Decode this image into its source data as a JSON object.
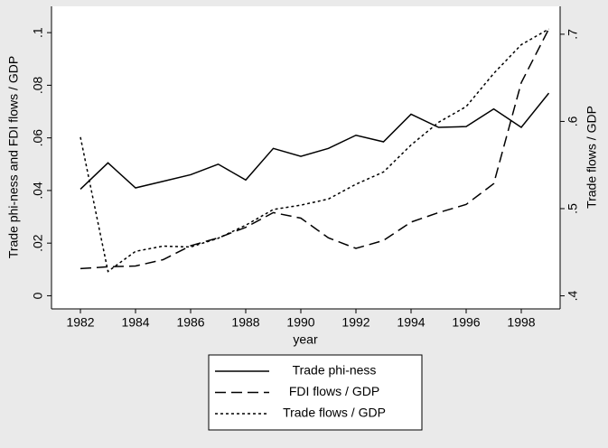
{
  "chart_data": {
    "type": "line",
    "x": [
      1982,
      1983,
      1984,
      1985,
      1986,
      1987,
      1988,
      1989,
      1990,
      1991,
      1992,
      1993,
      1994,
      1995,
      1996,
      1997,
      1998,
      1999
    ],
    "xlabel": "year",
    "ylabel": "Trade phi-ness and FDI flows / GDP",
    "y2label": "Trade flows / GDP",
    "xlim": [
      1980.95,
      1999.41
    ],
    "xticks": [
      1982,
      1984,
      1986,
      1988,
      1990,
      1992,
      1994,
      1996,
      1998
    ],
    "ylim": [
      -0.005,
      0.11
    ],
    "yticks": [
      0,
      {
        "value": 0.02,
        "label": ".02"
      },
      {
        "value": 0.04,
        "label": ".04"
      },
      {
        "value": 0.06,
        "label": ".06"
      },
      {
        "value": 0.08,
        "label": ".08"
      },
      {
        "value": 0.1,
        "label": ".1"
      }
    ],
    "y2lim": [
      0.385,
      0.732
    ],
    "y2ticks": [
      {
        "value": 0.4,
        "label": ".4"
      },
      {
        "value": 0.5,
        "label": ".5"
      },
      {
        "value": 0.6,
        "label": ".6"
      },
      {
        "value": 0.7,
        "label": ".7"
      }
    ],
    "series": [
      {
        "name": "Trade phi-ness",
        "color": "#000000",
        "dash": "solid",
        "axis": "y",
        "values": [
          0.0405,
          0.0505,
          0.041,
          0.0435,
          0.046,
          0.05,
          0.044,
          0.056,
          0.053,
          0.056,
          0.061,
          0.0585,
          0.069,
          0.064,
          0.0643,
          0.071,
          0.064,
          0.077
        ]
      },
      {
        "name": "FDI flows / GDP",
        "color": "#000000",
        "dash": "dashed",
        "axis": "y",
        "values": [
          0.0103,
          0.011,
          0.0113,
          0.0137,
          0.019,
          0.022,
          0.026,
          0.0316,
          0.0295,
          0.022,
          0.018,
          0.021,
          0.028,
          0.0316,
          0.0347,
          0.0426,
          0.081,
          0.1014
        ]
      },
      {
        "name": "Trade flows / GDP",
        "color": "#000000",
        "dash": "dotted",
        "axis": "y2",
        "values": [
          0.582,
          0.428,
          0.451,
          0.457,
          0.456,
          0.466,
          0.481,
          0.499,
          0.504,
          0.511,
          0.528,
          0.542,
          0.573,
          0.599,
          0.617,
          0.655,
          0.688,
          0.706
        ]
      }
    ]
  }
}
